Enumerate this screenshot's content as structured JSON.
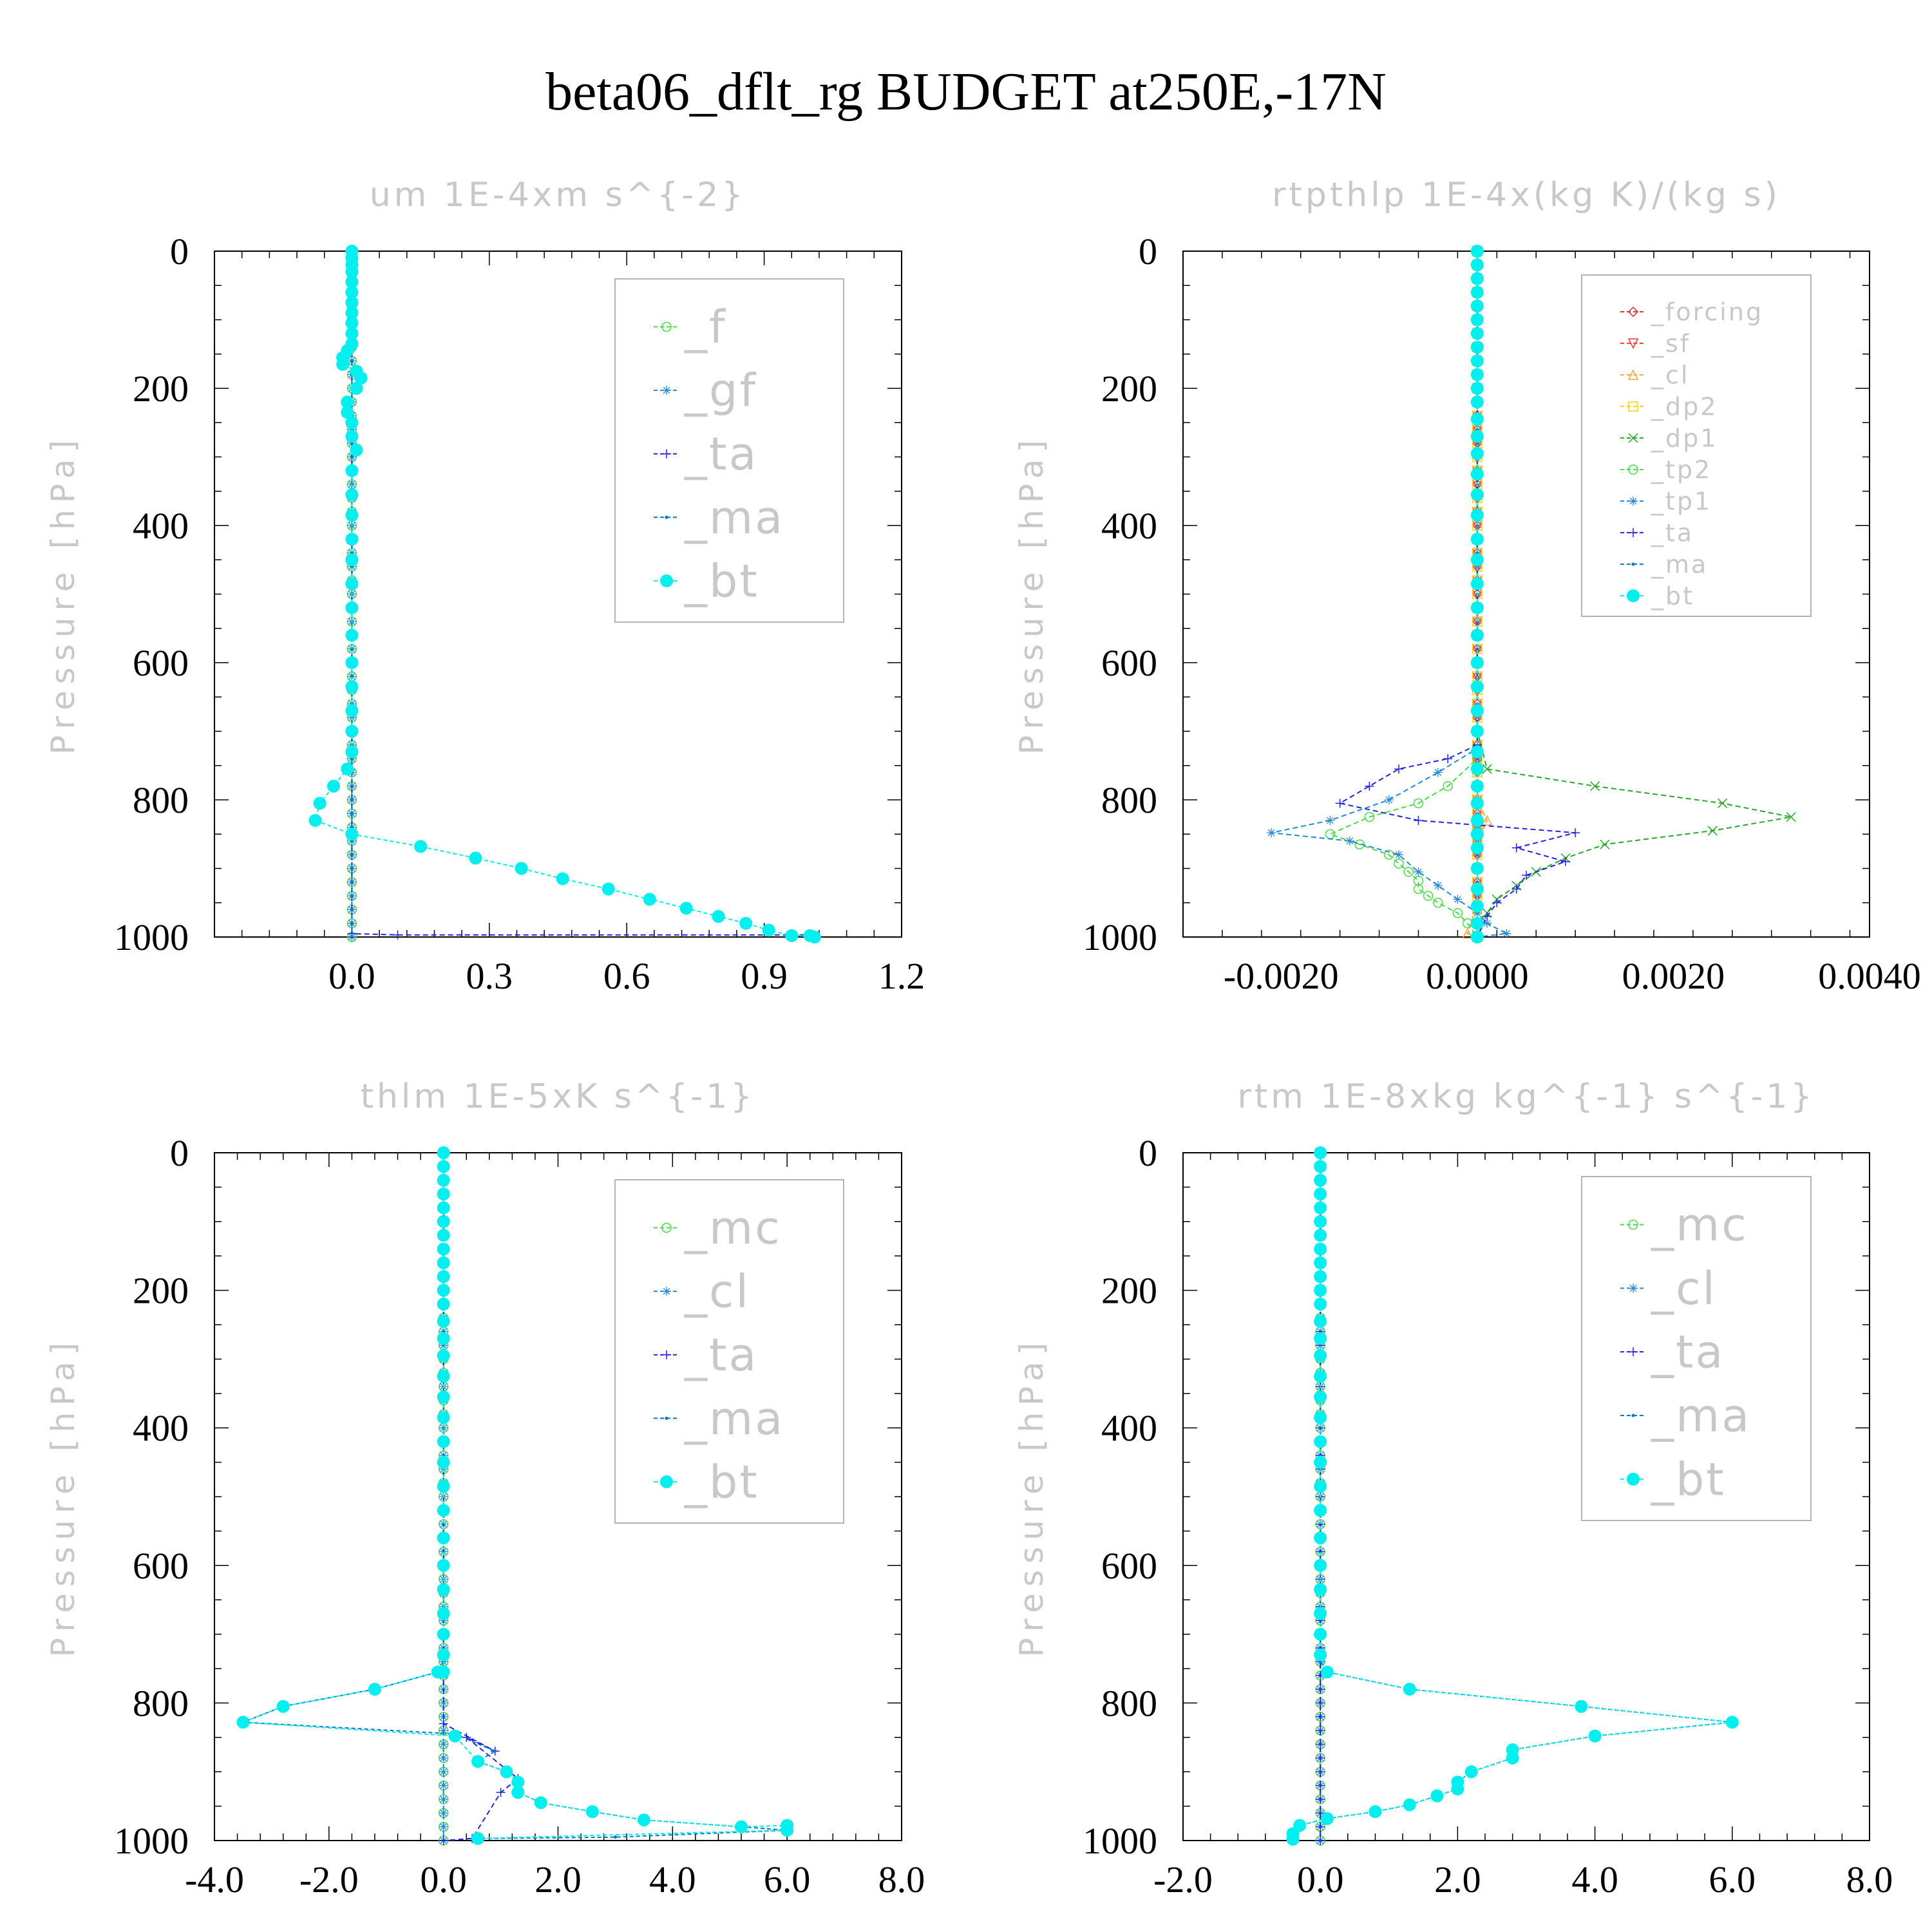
{
  "figure_title": "beta06_dflt_rg  BUDGET at250E,-17N",
  "colors": {
    "_f": "#44dd44",
    "_gf": "#2288dd",
    "_ta": "#2222ee",
    "_ma": "#0077cc",
    "_bt": "#00f0f0",
    "_forcing": "#e03030",
    "_sf": "#ff3333",
    "_cl": "#ffa040",
    "_dp2": "#ffd000",
    "_dp1": "#22aa22",
    "_tp2": "#44dd44",
    "_tp1": "#2288dd",
    "_mc": "#44dd44",
    "_cl2": "#2288dd"
  },
  "chart_data": [
    {
      "type": "line",
      "title": "um   1E-4xm s^{-2}",
      "ylabel": "Pressure [hPa]",
      "xlim": [
        -0.3,
        1.2
      ],
      "ylim": [
        1000,
        0
      ],
      "xticks": [
        "0.0",
        "0.3",
        "0.6",
        "0.9",
        "1.2"
      ],
      "xtick_values": [
        0,
        0.3,
        0.6,
        0.9,
        1.2
      ],
      "yticks": [
        "0",
        "200",
        "400",
        "600",
        "800",
        "1000"
      ],
      "ytick_values": [
        0,
        200,
        400,
        600,
        800,
        1000
      ],
      "legend": [
        "_f",
        "_gf",
        "_ta",
        "_ma",
        "_bt"
      ],
      "legend_position": "top-right",
      "legend_size": "large",
      "series": [
        {
          "name": "_f",
          "x": [
            0,
            0
          ],
          "y": [
            0,
            1000
          ]
        },
        {
          "name": "_gf",
          "x": [
            0,
            0
          ],
          "y": [
            0,
            1000
          ]
        },
        {
          "name": "_ta",
          "x": [
            0,
            0,
            0.1,
            1.0
          ],
          "y": [
            0,
            995,
            997,
            997
          ]
        },
        {
          "name": "_ma",
          "x": [
            0,
            0
          ],
          "y": [
            0,
            1000
          ]
        },
        {
          "name": "_bt",
          "x": [
            0,
            0,
            0,
            0,
            0,
            0,
            0,
            0,
            0,
            0,
            0,
            -0.01,
            -0.02,
            -0.02,
            0.01,
            0.02,
            0.01,
            -0.01,
            -0.01,
            0,
            0,
            0.01,
            0,
            0,
            0,
            0,
            0,
            0,
            0,
            0,
            0,
            0,
            0,
            0,
            0,
            -0.01,
            -0.04,
            -0.07,
            -0.08,
            0,
            0.15,
            0.27,
            0.37,
            0.46,
            0.56,
            0.65,
            0.73,
            0.8,
            0.86,
            0.91,
            0.96,
            1.0,
            1.01
          ],
          "y": [
            0,
            10,
            20,
            30,
            45,
            60,
            75,
            90,
            105,
            120,
            135,
            145,
            155,
            165,
            175,
            185,
            200,
            220,
            235,
            250,
            270,
            290,
            320,
            355,
            385,
            420,
            450,
            485,
            520,
            560,
            600,
            635,
            670,
            700,
            730,
            755,
            780,
            805,
            830,
            850,
            868,
            885,
            900,
            915,
            930,
            945,
            958,
            970,
            980,
            990,
            998,
            998,
            1000
          ]
        }
      ]
    },
    {
      "type": "line",
      "title": "rtpthlp   1E-4x(kg K)/(kg s)",
      "ylabel": "Pressure [hPa]",
      "xlim": [
        -0.003,
        0.004
      ],
      "ylim": [
        1000,
        0
      ],
      "xticks": [
        "-0.0020",
        "0.0000",
        "0.0020",
        "0.0040"
      ],
      "xtick_values": [
        -0.002,
        0,
        0.002,
        0.004
      ],
      "yticks": [
        "0",
        "200",
        "400",
        "600",
        "800",
        "1000"
      ],
      "ytick_values": [
        0,
        200,
        400,
        600,
        800,
        1000
      ],
      "legend": [
        "_forcing",
        "_sf",
        "_cl",
        "_dp2",
        "_dp1",
        "_tp2",
        "_tp1",
        "_ta",
        "_ma",
        "_bt"
      ],
      "legend_position": "top-right",
      "legend_size": "small",
      "series": [
        {
          "name": "_forcing",
          "x": [
            0,
            0
          ],
          "y": [
            0,
            1000
          ]
        },
        {
          "name": "_sf",
          "x": [
            0,
            0
          ],
          "y": [
            0,
            1000
          ]
        },
        {
          "name": "_cl",
          "x": [
            0,
            0,
            0.0001,
            0,
            0,
            -0.0001,
            0
          ],
          "y": [
            0,
            800,
            830,
            860,
            950,
            995,
            1000
          ]
        },
        {
          "name": "_dp2",
          "x": [
            0,
            0
          ],
          "y": [
            0,
            1000
          ]
        },
        {
          "name": "_dp1",
          "x": [
            0,
            0,
            0.0001,
            0.0012,
            0.0025,
            0.0032,
            0.0024,
            0.0013,
            0.0009,
            0.0006,
            0.0004,
            0.0002,
            0.0001,
            0
          ],
          "y": [
            0,
            700,
            755,
            780,
            805,
            825,
            845,
            865,
            885,
            905,
            925,
            945,
            965,
            1000
          ]
        },
        {
          "name": "_tp2",
          "x": [
            0,
            0,
            -0.0003,
            -0.0006,
            -0.0011,
            -0.0015,
            -0.0012,
            -0.0009,
            -0.0008,
            -0.0007,
            -0.0006,
            -0.0006,
            -0.0005,
            -0.0004,
            -0.0002,
            -0.0001,
            0
          ],
          "y": [
            0,
            740,
            780,
            805,
            825,
            850,
            865,
            880,
            893,
            905,
            918,
            930,
            940,
            950,
            965,
            980,
            1000
          ]
        },
        {
          "name": "_tp1",
          "x": [
            0,
            0,
            -0.0004,
            -0.0009,
            -0.0015,
            -0.0021,
            -0.0013,
            -0.0008,
            -0.0006,
            -0.0004,
            -0.0002,
            0,
            0.0001,
            0.0003,
            0
          ],
          "y": [
            0,
            725,
            760,
            800,
            830,
            848,
            860,
            880,
            905,
            925,
            945,
            965,
            980,
            995,
            1000
          ]
        },
        {
          "name": "_ta",
          "x": [
            0,
            0,
            -0.0003,
            -0.0008,
            -0.0011,
            -0.0014,
            -0.0006,
            0.001,
            0.0004,
            0.0009,
            0.0005,
            0.0004,
            0.0002,
            0.0001,
            0
          ],
          "y": [
            0,
            720,
            740,
            755,
            780,
            805,
            830,
            848,
            870,
            890,
            910,
            930,
            950,
            970,
            1000
          ]
        },
        {
          "name": "_ma",
          "x": [
            0,
            0
          ],
          "y": [
            0,
            1000
          ]
        },
        {
          "name": "_bt",
          "x": [
            0,
            0,
            0,
            0,
            0,
            0,
            0,
            0,
            0,
            0,
            0,
            0,
            0,
            0,
            0,
            0,
            0,
            0,
            0,
            0,
            0,
            0,
            0,
            0,
            0,
            0,
            0,
            0,
            0,
            0,
            0,
            0,
            0,
            0,
            0,
            0,
            0,
            0,
            0
          ],
          "y": [
            0,
            20,
            40,
            60,
            80,
            100,
            120,
            140,
            160,
            180,
            200,
            220,
            245,
            270,
            295,
            325,
            355,
            385,
            420,
            450,
            485,
            520,
            560,
            600,
            635,
            670,
            700,
            730,
            755,
            780,
            805,
            830,
            850,
            870,
            900,
            930,
            955,
            980,
            1000
          ]
        }
      ]
    },
    {
      "type": "line",
      "title": "thlm   1E-5xK s^{-1}",
      "ylabel": "Pressure [hPa]",
      "xlim": [
        -4,
        8
      ],
      "ylim": [
        1000,
        0
      ],
      "xticks": [
        "-4.0",
        "-2.0",
        "0.0",
        "2.0",
        "4.0",
        "6.0",
        "8.0"
      ],
      "xtick_values": [
        -4,
        -2,
        0,
        2,
        4,
        6,
        8
      ],
      "yticks": [
        "0",
        "200",
        "400",
        "600",
        "800",
        "1000"
      ],
      "ytick_values": [
        0,
        200,
        400,
        600,
        800,
        1000
      ],
      "legend": [
        "_mc",
        "_cl",
        "_ta",
        "_ma",
        "_bt"
      ],
      "legend_position": "top-right",
      "legend_size": "large",
      "series": [
        {
          "name": "_mc",
          "x": [
            0,
            0
          ],
          "y": [
            0,
            1000
          ]
        },
        {
          "name": "_cl",
          "x": [
            0,
            0
          ],
          "y": [
            0,
            1000
          ]
        },
        {
          "name": "_ta",
          "x": [
            0,
            0,
            0.9,
            0.4,
            1.3,
            1.0,
            0.5,
            0
          ],
          "y": [
            0,
            830,
            870,
            850,
            910,
            930,
            997,
            1000
          ]
        },
        {
          "name": "_ma",
          "x": [
            0,
            0,
            -0.1,
            -1.2,
            -2.8,
            -3.5,
            0.2,
            0.9,
            0.6,
            1.1,
            1.3,
            1.3,
            1.7,
            2.6,
            3.5,
            5.2,
            6.0,
            3.0,
            0.6
          ],
          "y": [
            0,
            740,
            755,
            780,
            805,
            828,
            845,
            870,
            885,
            900,
            915,
            930,
            945,
            958,
            970,
            980,
            985,
            995,
            997
          ]
        },
        {
          "name": "_bt",
          "x": [
            0,
            0,
            0,
            0,
            0,
            0,
            0,
            0,
            0,
            0,
            0,
            0,
            0,
            0,
            0,
            0,
            0,
            0,
            0,
            0,
            0,
            0,
            0,
            0,
            0,
            0,
            0,
            0,
            0,
            -0.1,
            -1.2,
            -2.8,
            -3.5,
            0.2,
            0.6,
            1.1,
            1.3,
            1.3,
            1.7,
            2.6,
            3.5,
            5.2,
            6.0,
            6.0,
            0.6
          ],
          "y": [
            0,
            20,
            40,
            60,
            80,
            100,
            120,
            140,
            160,
            180,
            200,
            220,
            245,
            270,
            295,
            325,
            355,
            385,
            420,
            450,
            485,
            520,
            560,
            600,
            635,
            670,
            700,
            730,
            755,
            755,
            780,
            805,
            828,
            848,
            885,
            900,
            915,
            930,
            945,
            958,
            970,
            980,
            978,
            985,
            997
          ]
        }
      ]
    },
    {
      "type": "line",
      "title": "rtm   1E-8xkg kg^{-1} s^{-1}",
      "ylabel": "Pressure [hPa]",
      "xlim": [
        -2,
        8
      ],
      "ylim": [
        1000,
        0
      ],
      "xticks": [
        "-2.0",
        "0.0",
        "2.0",
        "4.0",
        "6.0",
        "8.0"
      ],
      "xtick_values": [
        -2,
        0,
        2,
        4,
        6,
        8
      ],
      "yticks": [
        "0",
        "200",
        "400",
        "600",
        "800",
        "1000"
      ],
      "ytick_values": [
        0,
        200,
        400,
        600,
        800,
        1000
      ],
      "legend": [
        "_mc",
        "_cl",
        "_ta",
        "_ma",
        "_bt"
      ],
      "legend_position": "top-right",
      "legend_size": "large",
      "series": [
        {
          "name": "_mc",
          "x": [
            0,
            0
          ],
          "y": [
            0,
            1000
          ]
        },
        {
          "name": "_cl",
          "x": [
            0,
            0
          ],
          "y": [
            0,
            1000
          ]
        },
        {
          "name": "_ta",
          "x": [
            0,
            0
          ],
          "y": [
            0,
            1000
          ]
        },
        {
          "name": "_ma",
          "x": [
            0,
            0,
            0.1,
            1.3,
            3.8,
            6.0,
            4.0,
            2.8,
            2.8,
            2.2,
            2.0,
            2.0,
            1.7,
            1.3,
            0.8,
            0.1,
            -0.3,
            -0.4,
            -0.4
          ],
          "y": [
            0,
            740,
            755,
            780,
            805,
            828,
            848,
            868,
            880,
            900,
            915,
            925,
            935,
            948,
            958,
            968,
            978,
            990,
            998
          ]
        },
        {
          "name": "_bt",
          "x": [
            0,
            0,
            0,
            0,
            0,
            0,
            0,
            0,
            0,
            0,
            0,
            0,
            0,
            0,
            0,
            0,
            0,
            0,
            0,
            0,
            0,
            0,
            0,
            0,
            0,
            0,
            0,
            0,
            0.1,
            1.3,
            3.8,
            6.0,
            4.0,
            2.8,
            2.8,
            2.2,
            2.0,
            2.0,
            1.7,
            1.3,
            0.8,
            0.1,
            -0.3,
            -0.4,
            -0.4
          ],
          "y": [
            0,
            20,
            40,
            60,
            80,
            100,
            120,
            140,
            160,
            180,
            200,
            220,
            245,
            270,
            295,
            325,
            355,
            385,
            420,
            450,
            485,
            520,
            560,
            600,
            635,
            670,
            700,
            730,
            755,
            780,
            805,
            828,
            848,
            868,
            880,
            900,
            915,
            925,
            935,
            948,
            958,
            968,
            978,
            990,
            998
          ]
        }
      ]
    }
  ]
}
